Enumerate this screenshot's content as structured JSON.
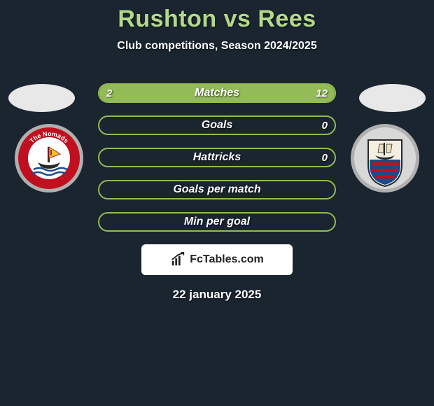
{
  "title": "Rushton vs Rees",
  "subtitle": "Club competitions, Season 2024/2025",
  "date": "22 january 2025",
  "logo_text": "FcTables.com",
  "colors": {
    "background": "#1a2530",
    "title": "#b4d88a",
    "bar_border": "#93bb56",
    "bar_fill": "#93bb56",
    "text": "#ffffff",
    "logo_bg": "#ffffff"
  },
  "bars": [
    {
      "label": "Matches",
      "left_val": "2",
      "right_val": "12",
      "left_pct": 14,
      "right_pct": 86
    },
    {
      "label": "Goals",
      "left_val": "",
      "right_val": "0",
      "left_pct": 0,
      "right_pct": 0
    },
    {
      "label": "Hattricks",
      "left_val": "",
      "right_val": "0",
      "left_pct": 0,
      "right_pct": 0
    },
    {
      "label": "Goals per match",
      "left_val": "",
      "right_val": "",
      "left_pct": 0,
      "right_pct": 0
    },
    {
      "label": "Min per goal",
      "left_val": "",
      "right_val": "",
      "left_pct": 0,
      "right_pct": 0
    }
  ],
  "badge_left": {
    "ring_outer": "#b0b0b0",
    "ring_inner": "#c01020",
    "banner_text": "The Nomads",
    "center_bg": "#ffffff",
    "sail": "#f4c430",
    "hull": "#2a2a2a",
    "waves": "#1e4a8a"
  },
  "badge_right": {
    "ring_outer": "#b0b0b0",
    "shield_bg": "#ffffff",
    "shield_border": "#2a2a2a",
    "ship_sail": "#e8e0c0",
    "hull": "#2a2a2a",
    "bars": "#c01020",
    "bars_bg": "#1e4a8a"
  }
}
